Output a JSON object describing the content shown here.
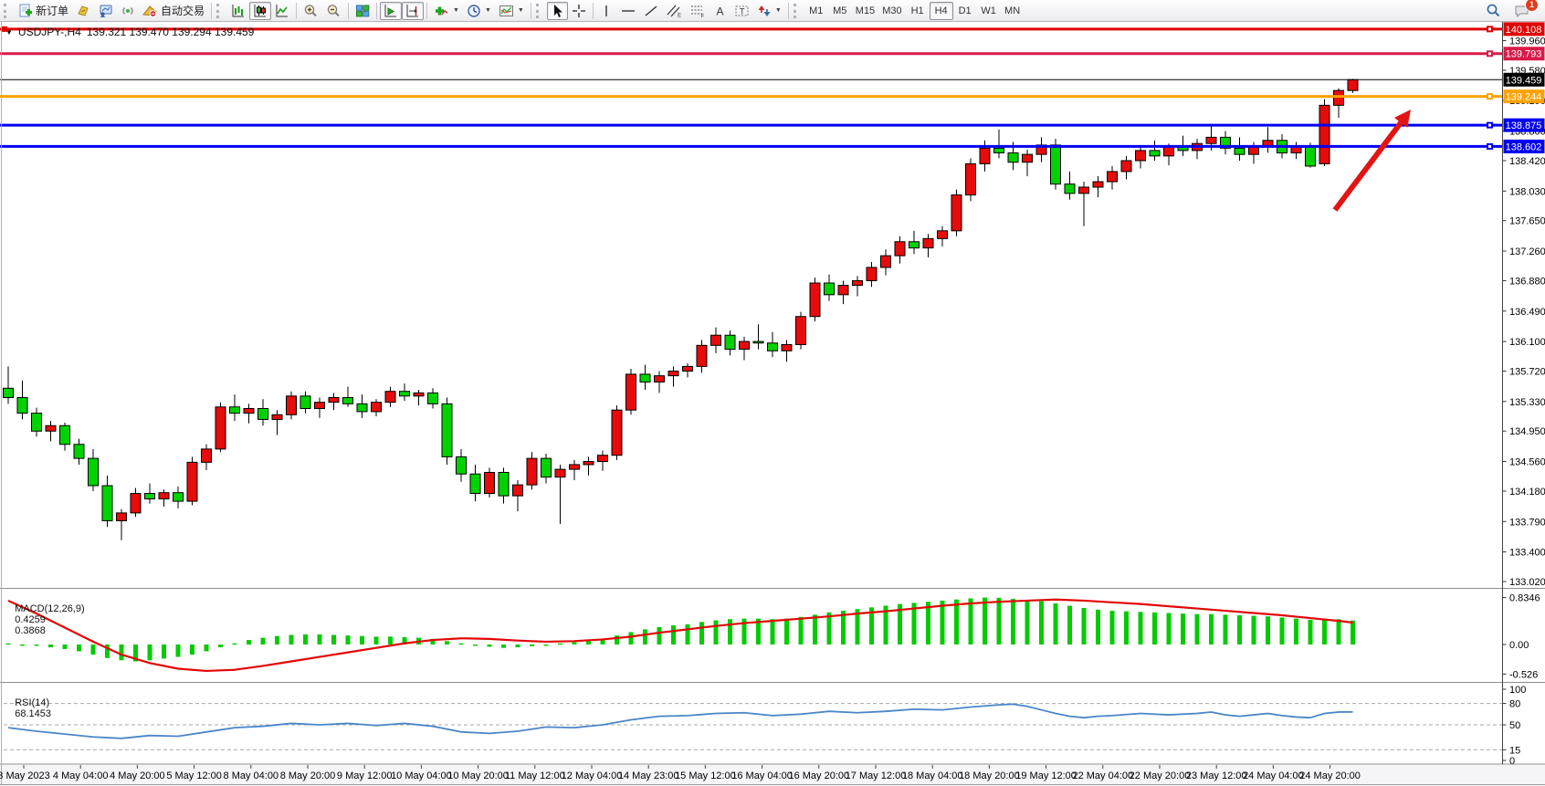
{
  "toolbar": {
    "new_order_label": "新订单",
    "autotrading_label": "自动交易",
    "timeframes": [
      "M1",
      "M5",
      "M15",
      "M30",
      "H1",
      "H4",
      "D1",
      "W1",
      "MN"
    ],
    "active_timeframe": "H4",
    "notification_count": "1",
    "icon_glyphs": {
      "text_tool": "A",
      "text_label_tool": "T",
      "equidistant_suffix": "E",
      "fibonacci_suffix": "F"
    }
  },
  "chart_header": {
    "symbol_period": "USDJPY-,H4",
    "ohlc_text": "139.321 139.470 139.294 139.459"
  },
  "indicators": {
    "macd": {
      "name": "MACD(12,26,9)",
      "value": "0.4259",
      "signal": "0.3868"
    },
    "rsi": {
      "name": "RSI(14)",
      "value": "68.1453"
    }
  },
  "chart_data": {
    "type": "candlestick",
    "symbol": "USDJPY-",
    "timeframe": "H4",
    "current_bar": {
      "open": 139.321,
      "high": 139.47,
      "low": 139.294,
      "close": 139.459
    },
    "colors": {
      "background": "#ffffff",
      "bull": "#e80b0b",
      "bear": "#00d200",
      "candle_outline": "#000000",
      "macd_histogram": "#00cc00",
      "macd_signal": "#e30505",
      "rsi_line": "#4a86c8",
      "rsi_levels": "#a8a8a8",
      "arrow": "#e21414",
      "axis_text": "#000000"
    },
    "price_axis": [
      {
        "value": 139.96,
        "label": "139.960"
      },
      {
        "value": 139.58,
        "label": "139.580"
      },
      {
        "value": 139.19,
        "label": "139.190"
      },
      {
        "value": 138.8,
        "label": "138.800"
      },
      {
        "value": 138.42,
        "label": "138.420"
      },
      {
        "value": 138.03,
        "label": "138.030"
      },
      {
        "value": 137.65,
        "label": "137.650"
      },
      {
        "value": 137.26,
        "label": "137.260"
      },
      {
        "value": 136.88,
        "label": "136.880"
      },
      {
        "value": 136.49,
        "label": "136.490"
      },
      {
        "value": 136.1,
        "label": "136.100"
      },
      {
        "value": 135.72,
        "label": "135.720"
      },
      {
        "value": 135.33,
        "label": "135.330"
      },
      {
        "value": 134.95,
        "label": "134.950"
      },
      {
        "value": 134.56,
        "label": "134.560"
      },
      {
        "value": 134.18,
        "label": "134.180"
      },
      {
        "value": 133.79,
        "label": "133.790"
      },
      {
        "value": 133.4,
        "label": "133.400"
      },
      {
        "value": 133.02,
        "label": "133.020"
      }
    ],
    "hlines": [
      {
        "price": 140.108,
        "label": "140.108",
        "color": "#e00000",
        "width": 3,
        "marker": true
      },
      {
        "price": 139.793,
        "label": "139.793",
        "color": "#d81b4a",
        "width": 3,
        "marker": true
      },
      {
        "price": 139.459,
        "label": "139.459",
        "color": "#000000",
        "width": 1,
        "marker": false,
        "current": true
      },
      {
        "price": 139.244,
        "label": "139.244",
        "color": "#ffa200",
        "width": 3,
        "marker": true
      },
      {
        "price": 138.875,
        "label": "138.875",
        "color": "#0000f0",
        "width": 3,
        "marker": true
      },
      {
        "price": 138.602,
        "label": "138.602",
        "color": "#0000f0",
        "width": 3,
        "marker": true
      }
    ],
    "time_labels": [
      "3 May 2023",
      "4 May 04:00",
      "4 May 20:00",
      "5 May 12:00",
      "8 May 04:00",
      "8 May 20:00",
      "9 May 12:00",
      "10 May 04:00",
      "10 May 20:00",
      "11 May 12:00",
      "12 May 04:00",
      "14 May 23:00",
      "15 May 12:00",
      "16 May 04:00",
      "16 May 20:00",
      "17 May 12:00",
      "18 May 04:00",
      "18 May 20:00",
      "19 May 12:00",
      "22 May 04:00",
      "22 May 20:00",
      "23 May 12:00",
      "24 May 04:00",
      "24 May 20:00"
    ],
    "candles": [
      [
        135.5,
        135.78,
        135.3,
        135.38
      ],
      [
        135.38,
        135.6,
        135.1,
        135.18
      ],
      [
        135.18,
        135.25,
        134.88,
        134.95
      ],
      [
        134.95,
        135.08,
        134.82,
        135.02
      ],
      [
        135.02,
        135.06,
        134.7,
        134.78
      ],
      [
        134.78,
        134.85,
        134.52,
        134.6
      ],
      [
        134.6,
        134.72,
        134.18,
        134.25
      ],
      [
        134.25,
        134.38,
        133.72,
        133.8
      ],
      [
        133.8,
        133.95,
        133.55,
        133.9
      ],
      [
        133.9,
        134.22,
        133.85,
        134.15
      ],
      [
        134.15,
        134.28,
        134.02,
        134.08
      ],
      [
        134.08,
        134.2,
        133.98,
        134.16
      ],
      [
        134.16,
        134.24,
        133.96,
        134.05
      ],
      [
        134.05,
        134.62,
        134.0,
        134.55
      ],
      [
        134.55,
        134.78,
        134.45,
        134.72
      ],
      [
        134.72,
        135.32,
        134.68,
        135.26
      ],
      [
        135.26,
        135.42,
        135.08,
        135.18
      ],
      [
        135.18,
        135.3,
        135.05,
        135.24
      ],
      [
        135.24,
        135.36,
        135.02,
        135.1
      ],
      [
        135.1,
        135.22,
        134.9,
        135.16
      ],
      [
        135.16,
        135.46,
        135.1,
        135.4
      ],
      [
        135.4,
        135.46,
        135.18,
        135.24
      ],
      [
        135.24,
        135.38,
        135.12,
        135.32
      ],
      [
        135.32,
        135.44,
        135.22,
        135.38
      ],
      [
        135.38,
        135.52,
        135.26,
        135.3
      ],
      [
        135.3,
        135.42,
        135.12,
        135.2
      ],
      [
        135.2,
        135.36,
        135.14,
        135.32
      ],
      [
        135.32,
        135.52,
        135.26,
        135.46
      ],
      [
        135.46,
        135.56,
        135.34,
        135.4
      ],
      [
        135.4,
        135.48,
        135.28,
        135.44
      ],
      [
        135.44,
        135.5,
        135.24,
        135.3
      ],
      [
        135.3,
        135.38,
        134.52,
        134.62
      ],
      [
        134.62,
        134.72,
        134.3,
        134.4
      ],
      [
        134.4,
        134.52,
        134.05,
        134.15
      ],
      [
        134.15,
        134.48,
        134.1,
        134.42
      ],
      [
        134.42,
        134.48,
        134.02,
        134.12
      ],
      [
        134.12,
        134.32,
        133.92,
        134.26
      ],
      [
        134.26,
        134.68,
        134.2,
        134.6
      ],
      [
        134.6,
        134.66,
        134.28,
        134.36
      ],
      [
        134.36,
        134.52,
        133.76,
        134.46
      ],
      [
        134.46,
        134.58,
        134.32,
        134.52
      ],
      [
        134.52,
        134.62,
        134.38,
        134.56
      ],
      [
        134.56,
        134.7,
        134.44,
        134.64
      ],
      [
        134.64,
        135.28,
        134.58,
        135.22
      ],
      [
        135.22,
        135.75,
        135.16,
        135.68
      ],
      [
        135.68,
        135.8,
        135.48,
        135.58
      ],
      [
        135.58,
        135.72,
        135.44,
        135.66
      ],
      [
        135.66,
        135.78,
        135.52,
        135.72
      ],
      [
        135.72,
        135.82,
        135.64,
        135.78
      ],
      [
        135.78,
        136.12,
        135.7,
        136.05
      ],
      [
        136.05,
        136.28,
        135.95,
        136.18
      ],
      [
        136.18,
        136.24,
        135.92,
        136.0
      ],
      [
        136.0,
        136.16,
        135.86,
        136.1
      ],
      [
        136.1,
        136.32,
        136.0,
        136.08
      ],
      [
        136.08,
        136.22,
        135.9,
        135.98
      ],
      [
        135.98,
        136.12,
        135.84,
        136.06
      ],
      [
        136.06,
        136.48,
        136.0,
        136.42
      ],
      [
        136.42,
        136.92,
        136.36,
        136.85
      ],
      [
        136.85,
        136.96,
        136.62,
        136.7
      ],
      [
        136.7,
        136.88,
        136.58,
        136.82
      ],
      [
        136.82,
        136.94,
        136.68,
        136.88
      ],
      [
        136.88,
        137.12,
        136.8,
        137.05
      ],
      [
        137.05,
        137.28,
        136.95,
        137.2
      ],
      [
        137.2,
        137.45,
        137.1,
        137.38
      ],
      [
        137.38,
        137.52,
        137.22,
        137.3
      ],
      [
        137.3,
        137.48,
        137.18,
        137.42
      ],
      [
        137.42,
        137.58,
        137.32,
        137.52
      ],
      [
        137.52,
        138.05,
        137.45,
        137.98
      ],
      [
        137.98,
        138.45,
        137.9,
        138.38
      ],
      [
        138.38,
        138.68,
        138.28,
        138.58
      ],
      [
        138.58,
        138.82,
        138.45,
        138.52
      ],
      [
        138.52,
        138.66,
        138.3,
        138.4
      ],
      [
        138.4,
        138.56,
        138.22,
        138.5
      ],
      [
        138.5,
        138.72,
        138.4,
        138.62
      ],
      [
        138.62,
        138.7,
        138.05,
        138.12
      ],
      [
        138.12,
        138.28,
        137.92,
        138.0
      ],
      [
        138.0,
        138.15,
        137.58,
        138.08
      ],
      [
        138.08,
        138.22,
        137.95,
        138.15
      ],
      [
        138.15,
        138.35,
        138.05,
        138.28
      ],
      [
        138.28,
        138.48,
        138.18,
        138.42
      ],
      [
        138.42,
        138.62,
        138.32,
        138.55
      ],
      [
        138.55,
        138.68,
        138.42,
        138.48
      ],
      [
        138.48,
        138.64,
        138.36,
        138.6
      ],
      [
        138.6,
        138.74,
        138.48,
        138.55
      ],
      [
        138.55,
        138.7,
        138.44,
        138.64
      ],
      [
        138.64,
        138.86,
        138.55,
        138.72
      ],
      [
        138.72,
        138.8,
        138.5,
        138.58
      ],
      [
        138.58,
        138.72,
        138.42,
        138.5
      ],
      [
        138.5,
        138.66,
        138.38,
        138.6
      ],
      [
        138.6,
        138.85,
        138.52,
        138.68
      ],
      [
        138.68,
        138.76,
        138.45,
        138.52
      ],
      [
        138.52,
        138.66,
        138.44,
        138.61
      ],
      [
        138.61,
        138.65,
        138.33,
        138.35
      ],
      [
        138.38,
        139.21,
        138.35,
        139.13
      ],
      [
        139.13,
        139.35,
        138.97,
        139.32
      ],
      [
        139.32,
        139.47,
        139.29,
        139.459
      ]
    ],
    "macd": {
      "axis": [
        {
          "value": 0.8346,
          "label": "0.8346"
        },
        {
          "value": 0,
          "label": "0.00"
        },
        {
          "value": -0.526,
          "label": "-0.526"
        }
      ],
      "histogram": [
        0.02,
        0.0,
        -0.02,
        -0.05,
        -0.08,
        -0.12,
        -0.18,
        -0.24,
        -0.28,
        -0.3,
        -0.28,
        -0.25,
        -0.22,
        -0.18,
        -0.12,
        -0.05,
        0.02,
        0.08,
        0.12,
        0.15,
        0.17,
        0.18,
        0.18,
        0.17,
        0.16,
        0.15,
        0.14,
        0.14,
        0.13,
        0.12,
        0.1,
        0.06,
        0.02,
        -0.02,
        -0.04,
        -0.06,
        -0.05,
        -0.03,
        0.0,
        0.02,
        0.04,
        0.06,
        0.1,
        0.16,
        0.22,
        0.27,
        0.31,
        0.34,
        0.36,
        0.4,
        0.43,
        0.45,
        0.46,
        0.46,
        0.45,
        0.46,
        0.49,
        0.53,
        0.57,
        0.6,
        0.63,
        0.66,
        0.69,
        0.72,
        0.74,
        0.76,
        0.78,
        0.8,
        0.82,
        0.8346,
        0.83,
        0.81,
        0.79,
        0.77,
        0.73,
        0.69,
        0.65,
        0.62,
        0.6,
        0.59,
        0.58,
        0.57,
        0.56,
        0.55,
        0.54,
        0.54,
        0.53,
        0.52,
        0.51,
        0.5,
        0.48,
        0.46,
        0.44,
        0.44,
        0.45,
        0.4259
      ],
      "signal_points": [
        [
          0,
          0.78
        ],
        [
          2,
          0.55
        ],
        [
          4,
          0.3
        ],
        [
          6,
          0.05
        ],
        [
          8,
          -0.18
        ],
        [
          10,
          -0.33
        ],
        [
          12,
          -0.43
        ],
        [
          14,
          -0.47
        ],
        [
          16,
          -0.45
        ],
        [
          18,
          -0.38
        ],
        [
          20,
          -0.3
        ],
        [
          22,
          -0.22
        ],
        [
          24,
          -0.14
        ],
        [
          26,
          -0.06
        ],
        [
          28,
          0.02
        ],
        [
          30,
          0.08
        ],
        [
          32,
          0.11
        ],
        [
          34,
          0.1
        ],
        [
          36,
          0.07
        ],
        [
          38,
          0.05
        ],
        [
          40,
          0.06
        ],
        [
          42,
          0.09
        ],
        [
          44,
          0.14
        ],
        [
          46,
          0.21
        ],
        [
          48,
          0.27
        ],
        [
          50,
          0.33
        ],
        [
          52,
          0.38
        ],
        [
          54,
          0.42
        ],
        [
          56,
          0.46
        ],
        [
          58,
          0.5
        ],
        [
          60,
          0.55
        ],
        [
          62,
          0.59
        ],
        [
          64,
          0.64
        ],
        [
          66,
          0.69
        ],
        [
          68,
          0.73
        ],
        [
          70,
          0.76
        ],
        [
          72,
          0.78
        ],
        [
          74,
          0.8
        ],
        [
          76,
          0.78
        ],
        [
          78,
          0.75
        ],
        [
          80,
          0.72
        ],
        [
          82,
          0.68
        ],
        [
          84,
          0.64
        ],
        [
          86,
          0.6
        ],
        [
          88,
          0.56
        ],
        [
          90,
          0.52
        ],
        [
          92,
          0.47
        ],
        [
          94,
          0.42
        ],
        [
          95,
          0.39
        ]
      ]
    },
    "rsi": {
      "axis": [
        {
          "value": 100,
          "label": "100",
          "dashed": false
        },
        {
          "value": 80,
          "label": "80",
          "dashed": true
        },
        {
          "value": 50,
          "label": "50",
          "dashed": true
        },
        {
          "value": 15,
          "label": "15",
          "dashed": true
        },
        {
          "value": 0,
          "label": "0",
          "dashed": false
        }
      ],
      "points": [
        [
          0,
          46
        ],
        [
          2,
          41
        ],
        [
          4,
          37
        ],
        [
          6,
          33
        ],
        [
          8,
          31
        ],
        [
          10,
          35
        ],
        [
          12,
          34
        ],
        [
          14,
          40
        ],
        [
          16,
          46
        ],
        [
          18,
          48
        ],
        [
          20,
          52
        ],
        [
          22,
          50
        ],
        [
          24,
          52
        ],
        [
          26,
          49
        ],
        [
          28,
          52
        ],
        [
          30,
          48
        ],
        [
          32,
          40
        ],
        [
          34,
          38
        ],
        [
          36,
          41
        ],
        [
          38,
          47
        ],
        [
          40,
          46
        ],
        [
          42,
          50
        ],
        [
          44,
          57
        ],
        [
          46,
          62
        ],
        [
          48,
          63
        ],
        [
          50,
          66
        ],
        [
          52,
          67
        ],
        [
          54,
          63
        ],
        [
          56,
          65
        ],
        [
          58,
          69
        ],
        [
          60,
          67
        ],
        [
          62,
          69
        ],
        [
          64,
          72
        ],
        [
          66,
          71
        ],
        [
          68,
          75
        ],
        [
          70,
          78
        ],
        [
          71,
          79
        ],
        [
          72,
          76
        ],
        [
          74,
          66
        ],
        [
          75,
          62
        ],
        [
          76,
          60
        ],
        [
          77,
          62
        ],
        [
          78,
          63
        ],
        [
          80,
          66
        ],
        [
          82,
          64
        ],
        [
          84,
          66
        ],
        [
          85,
          68
        ],
        [
          86,
          64
        ],
        [
          87,
          62
        ],
        [
          88,
          64
        ],
        [
          89,
          66
        ],
        [
          90,
          63
        ],
        [
          91,
          61
        ],
        [
          92,
          60
        ],
        [
          93,
          66
        ],
        [
          94,
          68
        ],
        [
          95,
          68.1
        ]
      ]
    },
    "annotation_arrow": {
      "from": [
        1462,
        230
      ],
      "to": [
        1545,
        120
      ]
    }
  }
}
